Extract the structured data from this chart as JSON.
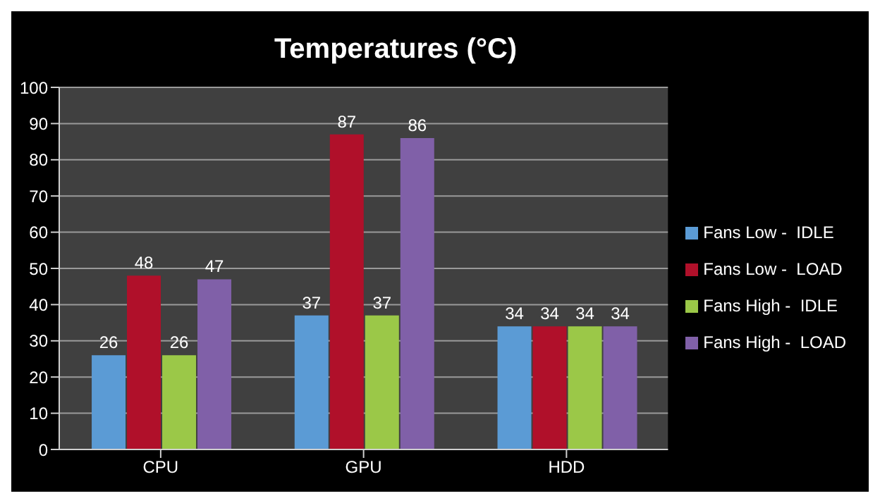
{
  "chart_data": {
    "type": "bar",
    "title": "Temperatures (°C)",
    "categories": [
      "CPU",
      "GPU",
      "HDD"
    ],
    "series": [
      {
        "name": "Fans Low -  IDLE",
        "color": "#5b9bd5",
        "values": [
          26,
          37,
          34
        ]
      },
      {
        "name": "Fans Low -  LOAD",
        "color": "#b0102a",
        "values": [
          48,
          87,
          34
        ]
      },
      {
        "name": "Fans High -  IDLE",
        "color": "#9bc848",
        "values": [
          26,
          37,
          34
        ]
      },
      {
        "name": "Fans High -  LOAD",
        "color": "#8060a8",
        "values": [
          47,
          86,
          34
        ]
      }
    ],
    "ylim": [
      0,
      100
    ],
    "yticks": [
      0,
      10,
      20,
      30,
      40,
      50,
      60,
      70,
      80,
      90,
      100
    ],
    "grid": "y",
    "legend": "right",
    "data_labels": true
  }
}
